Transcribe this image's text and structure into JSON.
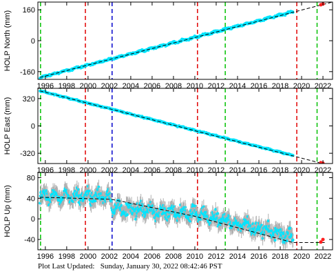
{
  "footer": {
    "label": "Plot Last Updated:",
    "timestamp": "Sunday, January 30, 2022 08:42:46 PST"
  },
  "colors": {
    "data": "#00e5ff",
    "error_bars": "#b0b0b0",
    "model": "#000000",
    "red_marker": "#e00000",
    "green_marker": "#00c000",
    "blue_marker": "#0000cc",
    "recent": "#ff2020",
    "frame": "#000000"
  },
  "chart_data": [
    {
      "type": "scatter",
      "ylabel": "HOLP North (mm)",
      "xlim": [
        1995.3,
        2022.9
      ],
      "ylim": [
        -200,
        200
      ],
      "yticks": [
        -160,
        0,
        160
      ],
      "xticks": [
        1996,
        1998,
        2000,
        2002,
        2004,
        2006,
        2008,
        2010,
        2012,
        2014,
        2016,
        2018,
        2020,
        2022
      ],
      "series": [
        {
          "values_start": [
            1995.5,
            -190
          ],
          "values_end": [
            2019.2,
            150
          ],
          "noise": 4
        }
      ],
      "model_line": [
        [
          1995.5,
          -190
        ],
        [
          2022.9,
          200
        ]
      ],
      "recent_points": [
        [
          2021.8,
          186
        ],
        [
          2022.0,
          190
        ]
      ]
    },
    {
      "type": "scatter",
      "ylabel": "HOLP East (mm)",
      "xlim": [
        1995.3,
        2022.9
      ],
      "ylim": [
        -440,
        440
      ],
      "yticks": [
        -320,
        0,
        320
      ],
      "xticks": [
        1996,
        1998,
        2000,
        2002,
        2004,
        2006,
        2008,
        2010,
        2012,
        2014,
        2016,
        2018,
        2020,
        2022
      ],
      "series": [
        {
          "values_start": [
            1995.5,
            410
          ],
          "values_end": [
            2019.2,
            -345
          ],
          "noise": 6
        }
      ],
      "model_line": [
        [
          1995.5,
          410
        ],
        [
          2022.9,
          -470
        ]
      ],
      "recent_points": [
        [
          2021.8,
          -430
        ],
        [
          2022.0,
          -436
        ]
      ]
    },
    {
      "type": "scatter",
      "ylabel": "HOLP Up (mm)",
      "xlim": [
        1995.3,
        2022.9
      ],
      "ylim": [
        -60,
        90
      ],
      "yticks": [
        -40,
        0,
        40,
        80
      ],
      "xticks": [
        1996,
        1998,
        2000,
        2002,
        2004,
        2006,
        2008,
        2010,
        2012,
        2014,
        2016,
        2018,
        2020,
        2022
      ],
      "series": [
        {
          "values_start": [
            1995.5,
            48
          ],
          "values_end": [
            2019.2,
            -42
          ],
          "noise": 10
        }
      ],
      "model_line": [
        [
          1995.5,
          42
        ],
        [
          2002.2,
          38
        ],
        [
          2010.0,
          5
        ],
        [
          2019.2,
          -46
        ],
        [
          2022.3,
          -46
        ]
      ],
      "recent_points": [
        [
          2021.8,
          -45
        ],
        [
          2022.0,
          -40
        ]
      ]
    }
  ],
  "event_markers": [
    {
      "year": 1995.55,
      "color": "green"
    },
    {
      "year": 1999.75,
      "color": "red"
    },
    {
      "year": 2002.25,
      "color": "blue"
    },
    {
      "year": 2010.25,
      "color": "red"
    },
    {
      "year": 2012.85,
      "color": "green"
    },
    {
      "year": 2019.55,
      "color": "red"
    },
    {
      "year": 2021.45,
      "color": "green"
    }
  ]
}
